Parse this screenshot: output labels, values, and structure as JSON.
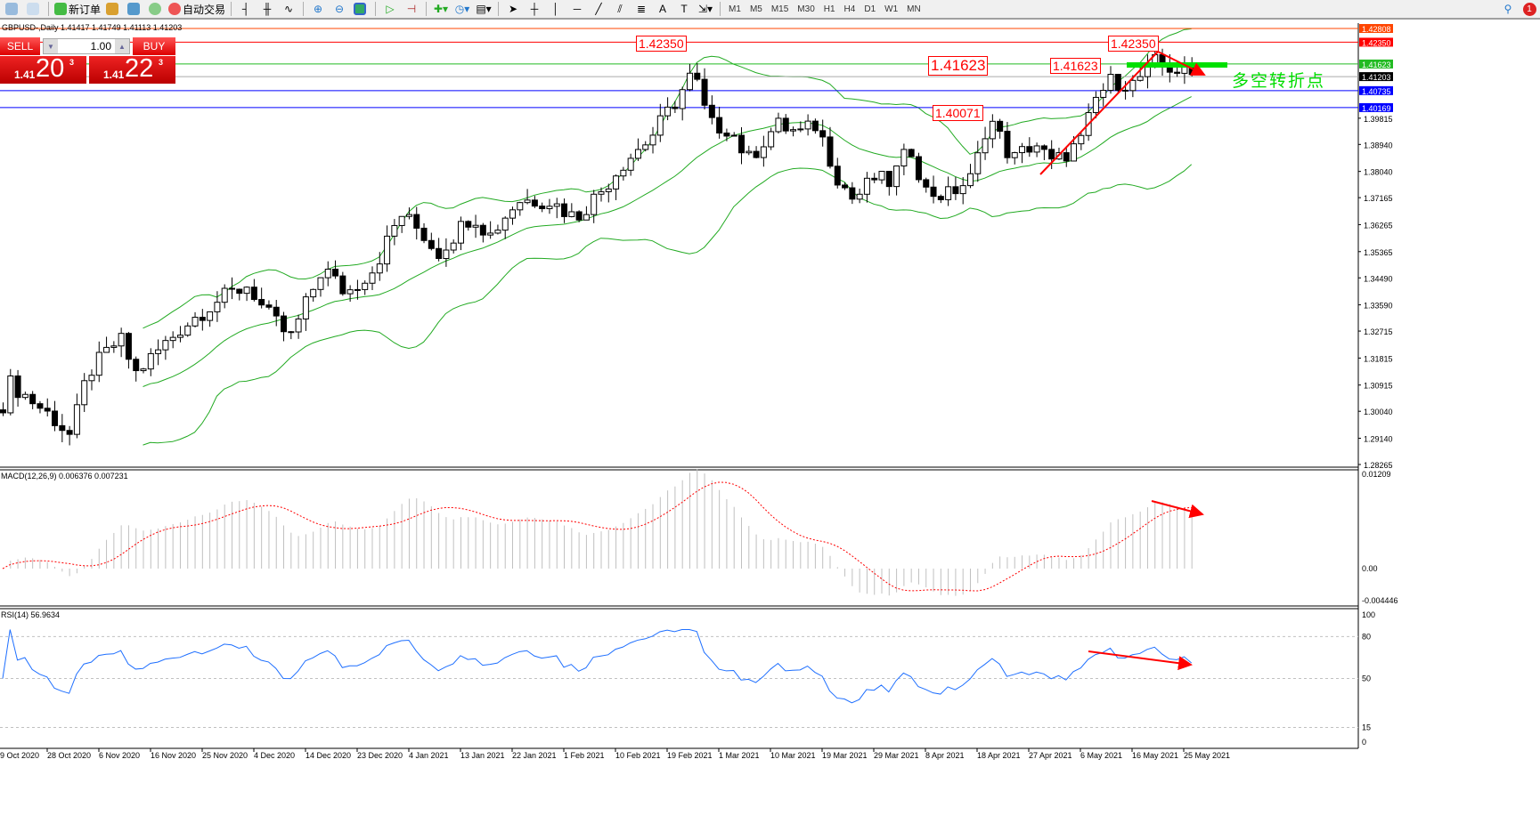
{
  "toolbar": {
    "new_order": "新订单",
    "auto_trade": "自动交易",
    "timeframes": [
      "M1",
      "M5",
      "M15",
      "M30",
      "H1",
      "H4",
      "D1",
      "W1",
      "MN"
    ],
    "notification_count": "1"
  },
  "chart_header": "GBPUSD-,Daily  1.41417 1.41749 1.41113 1.41203",
  "trade_panel": {
    "sell": "SELL",
    "buy": "BUY",
    "lot": "1.00",
    "bid_big": "1.41",
    "bid_pips": "20",
    "bid_frac": "3",
    "ask_big": "1.41",
    "ask_pips": "22",
    "ask_frac": "3"
  },
  "annotations": {
    "tag1": "1.42350",
    "tag2": "1.42350",
    "tag3": "1.41623",
    "tag4": "1.41623",
    "tag5": "1.40071",
    "note": "多空转折点",
    "arrow_color": "#ff0000",
    "note_color": "#00dd00"
  },
  "chart_data": {
    "type": "candlestick",
    "symbol": "GBPUSD-",
    "timeframe": "Daily",
    "ylim": [
      1.28265,
      1.42808
    ],
    "price_ticks": [
      "1.39815",
      "1.38940",
      "1.38040",
      "1.37165",
      "1.36265",
      "1.35365",
      "1.34490",
      "1.33590",
      "1.32715",
      "1.31815",
      "1.30915",
      "1.30040",
      "1.29140",
      "1.28265"
    ],
    "hlines": [
      {
        "price": 1.42808,
        "label": "1.42808",
        "color": "#ff4500"
      },
      {
        "price": 1.4235,
        "label": "1.42350",
        "color": "#ff0000"
      },
      {
        "price": 1.41623,
        "label": "1.41623",
        "color": "#22bb22"
      },
      {
        "price": 1.41203,
        "label": "1.41203",
        "color": "#000000"
      },
      {
        "price": 1.40735,
        "label": "1.40735",
        "color": "#0000ff"
      },
      {
        "price": 1.40169,
        "label": "1.40169",
        "color": "#0000ff"
      }
    ],
    "x_ticks": [
      {
        "label": "9 Oct 2020",
        "date": "2020-10-09"
      },
      {
        "label": "28 Oct 2020",
        "date": "2020-10-28"
      },
      {
        "label": "6 Nov 2020",
        "date": "2020-11-06"
      },
      {
        "label": "16 Nov 2020",
        "date": "2020-11-16"
      },
      {
        "label": "25 Nov 2020",
        "date": "2020-11-25"
      },
      {
        "label": "4 Dec 2020",
        "date": "2020-12-04"
      },
      {
        "label": "14 Dec 2020",
        "date": "2020-12-14"
      },
      {
        "label": "23 Dec 2020",
        "date": "2020-12-23"
      },
      {
        "label": "4 Jan 2021",
        "date": "2021-01-04"
      },
      {
        "label": "13 Jan 2021",
        "date": "2021-01-13"
      },
      {
        "label": "22 Jan 2021",
        "date": "2021-01-22"
      },
      {
        "label": "1 Feb 2021",
        "date": "2021-02-01"
      },
      {
        "label": "10 Feb 2021",
        "date": "2021-02-10"
      },
      {
        "label": "19 Feb 2021",
        "date": "2021-02-19"
      },
      {
        "label": "1 Mar 2021",
        "date": "2021-03-01"
      },
      {
        "label": "10 Mar 2021",
        "date": "2021-03-10"
      },
      {
        "label": "19 Mar 2021",
        "date": "2021-03-19"
      },
      {
        "label": "29 Mar 2021",
        "date": "2021-03-29"
      },
      {
        "label": "8 Apr 2021",
        "date": "2021-04-08"
      },
      {
        "label": "18 Apr 2021",
        "date": "2021-04-18"
      },
      {
        "label": "27 Apr 2021",
        "date": "2021-04-27"
      },
      {
        "label": "6 May 2021",
        "date": "2021-05-06"
      },
      {
        "label": "16 May 2021",
        "date": "2021-05-16"
      },
      {
        "label": "25 May 2021",
        "date": "2021-05-25"
      }
    ],
    "key_closes": [
      [
        "2020-10-10",
        1.2981
      ],
      [
        "2020-10-14",
        1.3099
      ],
      [
        "2020-10-29",
        1.2981
      ],
      [
        "2020-11-01",
        1.2921
      ],
      [
        "2020-11-04",
        1.3129
      ],
      [
        "2020-11-10",
        1.3248
      ],
      [
        "2020-11-13",
        1.3129
      ],
      [
        "2020-11-21",
        1.3278
      ],
      [
        "2020-11-27",
        1.3367
      ],
      [
        "2020-12-03",
        1.3426
      ],
      [
        "2020-12-06",
        1.3337
      ],
      [
        "2020-12-11",
        1.3248
      ],
      [
        "2020-12-17",
        1.3485
      ],
      [
        "2020-12-21",
        1.3396
      ],
      [
        "2020-12-27",
        1.3485
      ],
      [
        "2021-01-02",
        1.3663
      ],
      [
        "2021-01-06",
        1.3604
      ],
      [
        "2021-01-09",
        1.353
      ],
      [
        "2021-01-15",
        1.3663
      ],
      [
        "2021-01-18",
        1.3589
      ],
      [
        "2021-01-23",
        1.3708
      ],
      [
        "2021-01-29",
        1.3708
      ],
      [
        "2021-02-03",
        1.3649
      ],
      [
        "2021-02-08",
        1.3752
      ],
      [
        "2021-02-11",
        1.3827
      ],
      [
        "2021-02-16",
        1.3916
      ],
      [
        "2021-02-21",
        1.4049
      ],
      [
        "2021-02-24",
        1.4138
      ],
      [
        "2021-02-27",
        1.396
      ],
      [
        "2021-03-03",
        1.3946
      ],
      [
        "2021-03-06",
        1.3841
      ],
      [
        "2021-03-11",
        1.396
      ],
      [
        "2021-03-15",
        1.3931
      ],
      [
        "2021-03-18",
        1.396
      ],
      [
        "2021-03-22",
        1.3782
      ],
      [
        "2021-03-25",
        1.3708
      ],
      [
        "2021-03-29",
        1.3782
      ],
      [
        "2021-04-01",
        1.3767
      ],
      [
        "2021-04-05",
        1.3886
      ],
      [
        "2021-04-08",
        1.3738
      ],
      [
        "2021-04-12",
        1.3723
      ],
      [
        "2021-04-17",
        1.3782
      ],
      [
        "2021-04-20",
        1.399
      ],
      [
        "2021-04-24",
        1.3841
      ],
      [
        "2021-04-28",
        1.3901
      ],
      [
        "2021-05-01",
        1.3827
      ],
      [
        "2021-05-06",
        1.3901
      ],
      [
        "2021-05-09",
        1.4049
      ],
      [
        "2021-05-12",
        1.4108
      ],
      [
        "2021-05-16",
        1.4094
      ],
      [
        "2021-05-20",
        1.4168
      ],
      [
        "2021-05-22",
        1.4153
      ],
      [
        "2021-05-27",
        1.412
      ]
    ],
    "bands": {
      "name": "Bollinger Bands",
      "color": "#22aa22"
    },
    "macd": {
      "label": "MACD(12,26,9) 0.006376 0.007231",
      "ylim": [
        -0.004446,
        0.01209
      ],
      "ticks": [
        "0.01209",
        "0.00",
        "-0.004446"
      ],
      "histogram_color": "#c0c0c0",
      "signal_color": "#ff0000"
    },
    "rsi": {
      "label": "RSI(14) 56.9634",
      "ylim": [
        0,
        100
      ],
      "levels": [
        80,
        50,
        15
      ],
      "ticks": [
        "100",
        "80",
        "50",
        "15",
        "0"
      ],
      "color": "#1e6fff"
    }
  }
}
